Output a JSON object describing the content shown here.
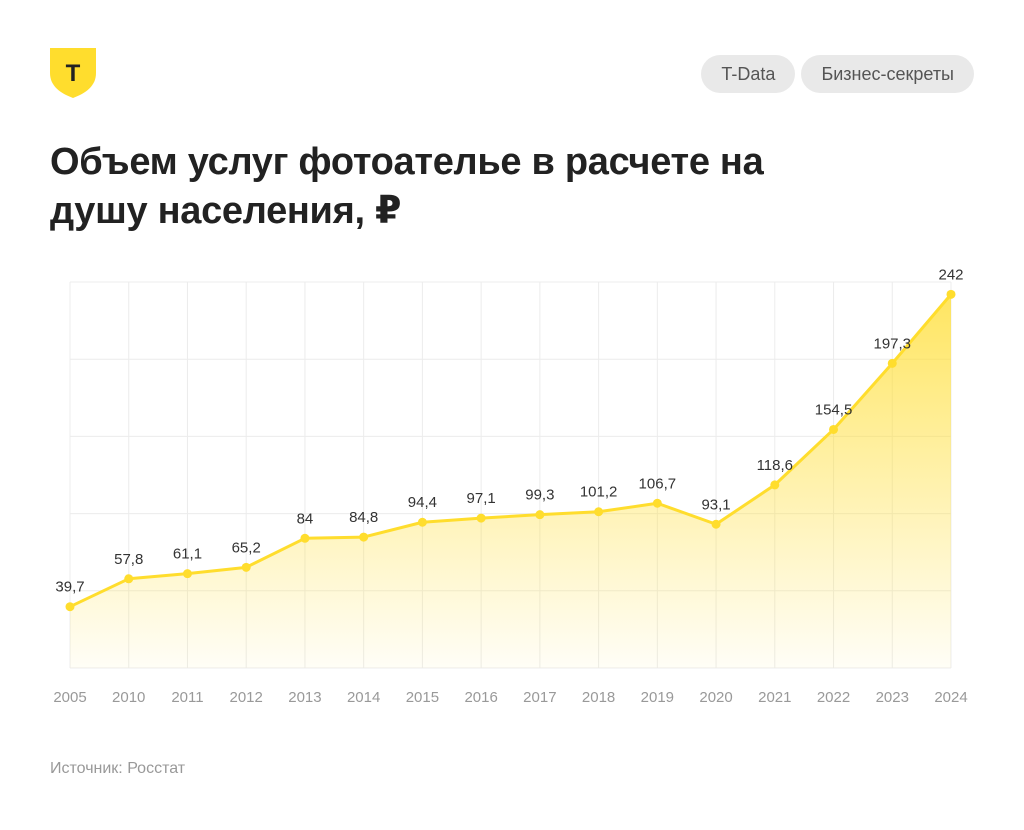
{
  "brand": {
    "logo_letter": "T",
    "accent_color": "#FFDD2D"
  },
  "header": {
    "tags": [
      "T-Data",
      "Бизнес-секреты"
    ]
  },
  "chart_data": {
    "type": "area",
    "title": "Объем услуг фотоателье в расчете на душу населения, ₽",
    "categories": [
      "2005",
      "2010",
      "2011",
      "2012",
      "2013",
      "2014",
      "2015",
      "2016",
      "2017",
      "2018",
      "2019",
      "2020",
      "2021",
      "2022",
      "2023",
      "2024"
    ],
    "values": [
      39.7,
      57.8,
      61.1,
      65.2,
      84,
      84.8,
      94.4,
      97.1,
      99.3,
      101.2,
      106.7,
      93.1,
      118.6,
      154.5,
      197.3,
      242
    ],
    "value_labels": [
      "39,7",
      "57,8",
      "61,1",
      "65,2",
      "84",
      "84,8",
      "94,4",
      "97,1",
      "99,3",
      "101,2",
      "106,7",
      "93,1",
      "118,6",
      "154,5",
      "197,3",
      "242"
    ],
    "ylim": [
      0,
      250
    ],
    "grid": true,
    "xlabel": "",
    "ylabel": "",
    "line_color": "#FFDD2D"
  },
  "footer": {
    "source": "Источник: Росстат"
  }
}
